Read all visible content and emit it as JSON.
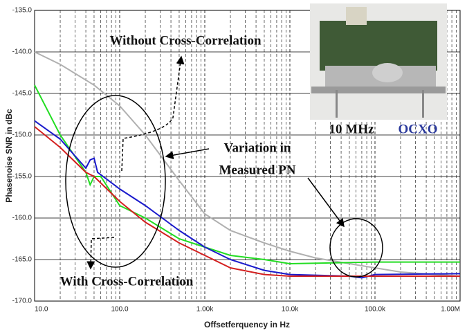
{
  "chart_data": {
    "type": "line",
    "x_label": "Offsetferquency in Hz",
    "y_label": "Phasenoise SNR in dBc",
    "xscale": "log",
    "grid": true,
    "xlim": [
      10,
      1000000
    ],
    "ylim": [
      -170,
      -135
    ],
    "xticks": [
      {
        "value": 10,
        "label": "10.0"
      },
      {
        "value": 100,
        "label": "100.0"
      },
      {
        "value": 1000,
        "label": "1.00k"
      },
      {
        "value": 10000,
        "label": "10.0k"
      },
      {
        "value": 100000,
        "label": "100.0k"
      },
      {
        "value": 1000000,
        "label": "1.00M"
      }
    ],
    "yticks": [
      {
        "value": -170,
        "label": "-170.0"
      },
      {
        "value": -165,
        "label": "-165.0"
      },
      {
        "value": -160,
        "label": "-160.0"
      },
      {
        "value": -155,
        "label": "-155.0"
      },
      {
        "value": -150,
        "label": "-150.0"
      },
      {
        "value": -145,
        "label": "-145.0"
      },
      {
        "value": -140,
        "label": "-140.0"
      },
      {
        "value": -135,
        "label": "-135.0"
      }
    ],
    "series": [
      {
        "color": "#b0b0b0",
        "x": [
          10,
          20,
          50,
          100,
          200,
          500,
          1000,
          2000,
          5000,
          10000,
          20000,
          50000,
          100000,
          200000,
          500000,
          1000000
        ],
        "values": [
          -140,
          -141.5,
          -144,
          -146.5,
          -150,
          -155.5,
          -159.5,
          -161.5,
          -163,
          -164,
          -164.8,
          -165.5,
          -166,
          -166.5,
          -166.8,
          -167
        ]
      },
      {
        "color": "#22dd22",
        "x": [
          10,
          20,
          40,
          45,
          50,
          60,
          100,
          200,
          500,
          1000,
          2000,
          5000,
          10000,
          100000,
          1000000
        ],
        "values": [
          -144,
          -150,
          -154.5,
          -156,
          -155,
          -155,
          -158.5,
          -160,
          -162.5,
          -163.5,
          -164.5,
          -165,
          -165.5,
          -165.3,
          -165.3
        ]
      },
      {
        "color": "#1a1acc",
        "x": [
          10,
          20,
          40,
          45,
          50,
          55,
          100,
          200,
          500,
          1000,
          2000,
          5000,
          10000,
          50000,
          70000,
          100000,
          1000000
        ],
        "values": [
          -148.3,
          -150.5,
          -154,
          -153,
          -152.8,
          -154.5,
          -156.5,
          -158.5,
          -161.5,
          -163.5,
          -165,
          -166.3,
          -166.8,
          -167,
          -167.2,
          -166.8,
          -166.7
        ]
      },
      {
        "color": "#d42020",
        "x": [
          10,
          20,
          40,
          50,
          100,
          200,
          500,
          1000,
          2000,
          5000,
          10000,
          100000,
          1000000
        ],
        "values": [
          -149,
          -151.5,
          -154.5,
          -155,
          -158,
          -160.5,
          -163,
          -164.5,
          -166,
          -166.8,
          -167,
          -167,
          -167
        ]
      }
    ],
    "annotations": [
      "Without Cross-Correlation",
      "Variation in",
      "Measured PN",
      "With Cross-Correlation",
      "10 MHz",
      "OCXO"
    ]
  }
}
